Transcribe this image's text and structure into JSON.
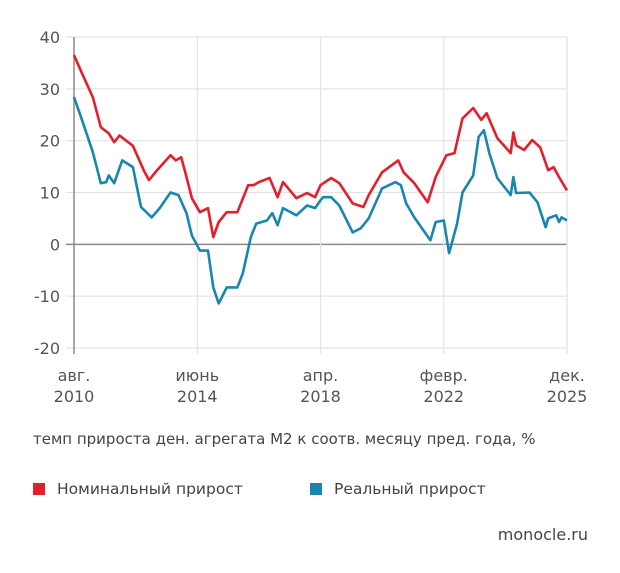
{
  "chart_data": {
    "type": "line",
    "title": "",
    "xlabel": "темп прироста ден. агрегата М2 к соотв. месяцу пред. года, %",
    "ylabel": "",
    "ylim": [
      -20,
      40
    ],
    "yticks": [
      "40",
      "30",
      "20",
      "10",
      "0",
      "-10",
      "-20"
    ],
    "yticks_values": [
      40,
      30,
      20,
      10,
      0,
      -10,
      -20
    ],
    "xlim": [
      "2010-08",
      "2025-12"
    ],
    "xticks": [
      {
        "date": "2010-08",
        "line1": "авг.",
        "line2": "2010"
      },
      {
        "date": "2014-06",
        "line1": "июнь",
        "line2": "2014"
      },
      {
        "date": "2018-04",
        "line1": "апр.",
        "line2": "2018"
      },
      {
        "date": "2022-02",
        "line1": "февр.",
        "line2": "2022"
      },
      {
        "date": "2025-12",
        "line1": "дек.",
        "line2": "2025"
      }
    ],
    "grid": true,
    "legend_position": "bottom",
    "series": [
      {
        "name": "Номинальный прирост",
        "color": "#e2202c",
        "points": [
          [
            "2010-08",
            36.5
          ],
          [
            "2010-11",
            33
          ],
          [
            "2011-03",
            28.4
          ],
          [
            "2011-06",
            22.6
          ],
          [
            "2011-09",
            21.4
          ],
          [
            "2011-11",
            19.7
          ],
          [
            "2012-01",
            21
          ],
          [
            "2012-06",
            19
          ],
          [
            "2012-10",
            14.3
          ],
          [
            "2012-12",
            12.4
          ],
          [
            "2013-03",
            14.3
          ],
          [
            "2013-08",
            17.2
          ],
          [
            "2013-10",
            16.2
          ],
          [
            "2013-12",
            16.8
          ],
          [
            "2014-02",
            13
          ],
          [
            "2014-04",
            8.9
          ],
          [
            "2014-07",
            6.2
          ],
          [
            "2014-10",
            7
          ],
          [
            "2014-12",
            1.4
          ],
          [
            "2015-02",
            4.3
          ],
          [
            "2015-05",
            6.2
          ],
          [
            "2015-09",
            6.2
          ],
          [
            "2016-01",
            11.4
          ],
          [
            "2016-03",
            11.4
          ],
          [
            "2016-05",
            12
          ],
          [
            "2016-09",
            12.8
          ],
          [
            "2016-12",
            9.1
          ],
          [
            "2017-02",
            12
          ],
          [
            "2017-07",
            8.9
          ],
          [
            "2017-11",
            9.9
          ],
          [
            "2018-02",
            9.1
          ],
          [
            "2018-04",
            11.4
          ],
          [
            "2018-08",
            12.8
          ],
          [
            "2018-11",
            11.8
          ],
          [
            "2019-04",
            7.9
          ],
          [
            "2019-08",
            7.2
          ],
          [
            "2019-10",
            9.5
          ],
          [
            "2020-03",
            13.9
          ],
          [
            "2020-09",
            16.2
          ],
          [
            "2020-11",
            13.9
          ],
          [
            "2021-03",
            11.8
          ],
          [
            "2021-08",
            8.1
          ],
          [
            "2021-11",
            13
          ],
          [
            "2022-03",
            17.2
          ],
          [
            "2022-06",
            17.6
          ],
          [
            "2022-09",
            24.3
          ],
          [
            "2023-01",
            26.3
          ],
          [
            "2023-04",
            24
          ],
          [
            "2023-06",
            25.3
          ],
          [
            "2023-10",
            20.5
          ],
          [
            "2024-03",
            17.6
          ],
          [
            "2024-04",
            21.6
          ],
          [
            "2024-05",
            19.1
          ],
          [
            "2024-08",
            18.2
          ],
          [
            "2024-11",
            20.1
          ],
          [
            "2025-02",
            18.7
          ],
          [
            "2025-05",
            14.3
          ],
          [
            "2025-07",
            14.9
          ],
          [
            "2025-09",
            13
          ],
          [
            "2025-12",
            10.4
          ]
        ]
      },
      {
        "name": "Реальный прирост",
        "color": "#1a86ad",
        "points": [
          [
            "2010-08",
            28.4
          ],
          [
            "2010-11",
            24
          ],
          [
            "2011-03",
            17.8
          ],
          [
            "2011-06",
            11.8
          ],
          [
            "2011-08",
            12
          ],
          [
            "2011-09",
            13.3
          ],
          [
            "2011-11",
            11.8
          ],
          [
            "2012-02",
            16.2
          ],
          [
            "2012-06",
            14.9
          ],
          [
            "2012-09",
            7.2
          ],
          [
            "2013-01",
            5.2
          ],
          [
            "2013-04",
            7
          ],
          [
            "2013-08",
            10
          ],
          [
            "2013-11",
            9.5
          ],
          [
            "2014-02",
            6
          ],
          [
            "2014-04",
            1.7
          ],
          [
            "2014-07",
            -1.2
          ],
          [
            "2014-10",
            -1.2
          ],
          [
            "2014-12",
            -8.3
          ],
          [
            "2015-02",
            -11.4
          ],
          [
            "2015-05",
            -8.3
          ],
          [
            "2015-09",
            -8.3
          ],
          [
            "2015-11",
            -5.6
          ],
          [
            "2016-02",
            1.4
          ],
          [
            "2016-04",
            4
          ],
          [
            "2016-08",
            4.6
          ],
          [
            "2016-10",
            6
          ],
          [
            "2016-12",
            3.7
          ],
          [
            "2017-02",
            7
          ],
          [
            "2017-07",
            5.6
          ],
          [
            "2017-11",
            7.5
          ],
          [
            "2018-02",
            7
          ],
          [
            "2018-04",
            8.5
          ],
          [
            "2018-05",
            9.1
          ],
          [
            "2018-08",
            9.1
          ],
          [
            "2018-11",
            7.5
          ],
          [
            "2019-04",
            2.3
          ],
          [
            "2019-07",
            3.1
          ],
          [
            "2019-10",
            5
          ],
          [
            "2020-03",
            10.8
          ],
          [
            "2020-08",
            12
          ],
          [
            "2020-10",
            11.4
          ],
          [
            "2020-12",
            7.9
          ],
          [
            "2021-03",
            5.2
          ],
          [
            "2021-09",
            0.8
          ],
          [
            "2021-11",
            4.3
          ],
          [
            "2022-02",
            4.6
          ],
          [
            "2022-04",
            -1.7
          ],
          [
            "2022-07",
            4
          ],
          [
            "2022-09",
            10
          ],
          [
            "2023-01",
            13.3
          ],
          [
            "2023-03",
            20.7
          ],
          [
            "2023-05",
            22
          ],
          [
            "2023-07",
            17.6
          ],
          [
            "2023-10",
            12.8
          ],
          [
            "2024-03",
            9.5
          ],
          [
            "2024-04",
            13
          ],
          [
            "2024-05",
            9.9
          ],
          [
            "2024-10",
            10
          ],
          [
            "2025-01",
            8.1
          ],
          [
            "2025-04",
            3.3
          ],
          [
            "2025-05",
            5
          ],
          [
            "2025-08",
            5.6
          ],
          [
            "2025-09",
            4.3
          ],
          [
            "2025-10",
            5.2
          ],
          [
            "2025-12",
            4.6
          ]
        ]
      }
    ]
  },
  "legend": {
    "nominal": {
      "label": "Номинальный прирост",
      "color": "#e2202c"
    },
    "real": {
      "label": "Реальный прирост",
      "color": "#1a86ad"
    }
  },
  "caption": "темп прироста ден. агрегата М2 к соотв. месяцу пред. года, %",
  "source": "monocle.ru"
}
